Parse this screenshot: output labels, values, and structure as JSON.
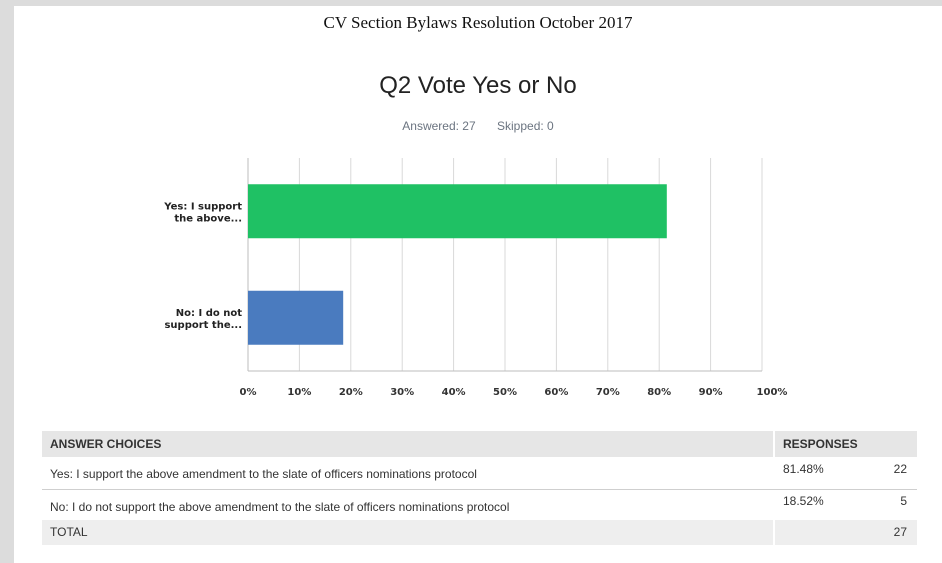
{
  "document_title": "CV Section Bylaws Resolution October 2017",
  "question_title": "Q2 Vote Yes or No",
  "stats": {
    "answered": "Answered: 27",
    "skipped": "Skipped: 0"
  },
  "colors": {
    "yes": "#1fc164",
    "no": "#4a7bbf",
    "grid": "#d9d9d9"
  },
  "chart_data": {
    "type": "bar",
    "orientation": "horizontal",
    "categories": [
      "Yes: I support the above...",
      "No: I do not support the..."
    ],
    "category_lines": [
      [
        "Yes: I support",
        "the above..."
      ],
      [
        "No: I do not",
        "support the..."
      ]
    ],
    "values": [
      81.48,
      18.52
    ],
    "xlim": [
      0,
      100
    ],
    "x_ticks": [
      "0%",
      "10%",
      "20%",
      "30%",
      "40%",
      "50%",
      "60%",
      "70%",
      "80%",
      "90%",
      "100%"
    ],
    "grid": true
  },
  "table": {
    "headers": {
      "choices": "ANSWER CHOICES",
      "responses": "RESPONSES"
    },
    "rows": [
      {
        "choice": "Yes: I support the above amendment to the slate of officers nominations protocol",
        "percent": "81.48%",
        "count": "22"
      },
      {
        "choice": "No: I do not support the above amendment to the slate of officers nominations protocol",
        "percent": "18.52%",
        "count": "5"
      }
    ],
    "total": {
      "label": "TOTAL",
      "count": "27"
    }
  }
}
